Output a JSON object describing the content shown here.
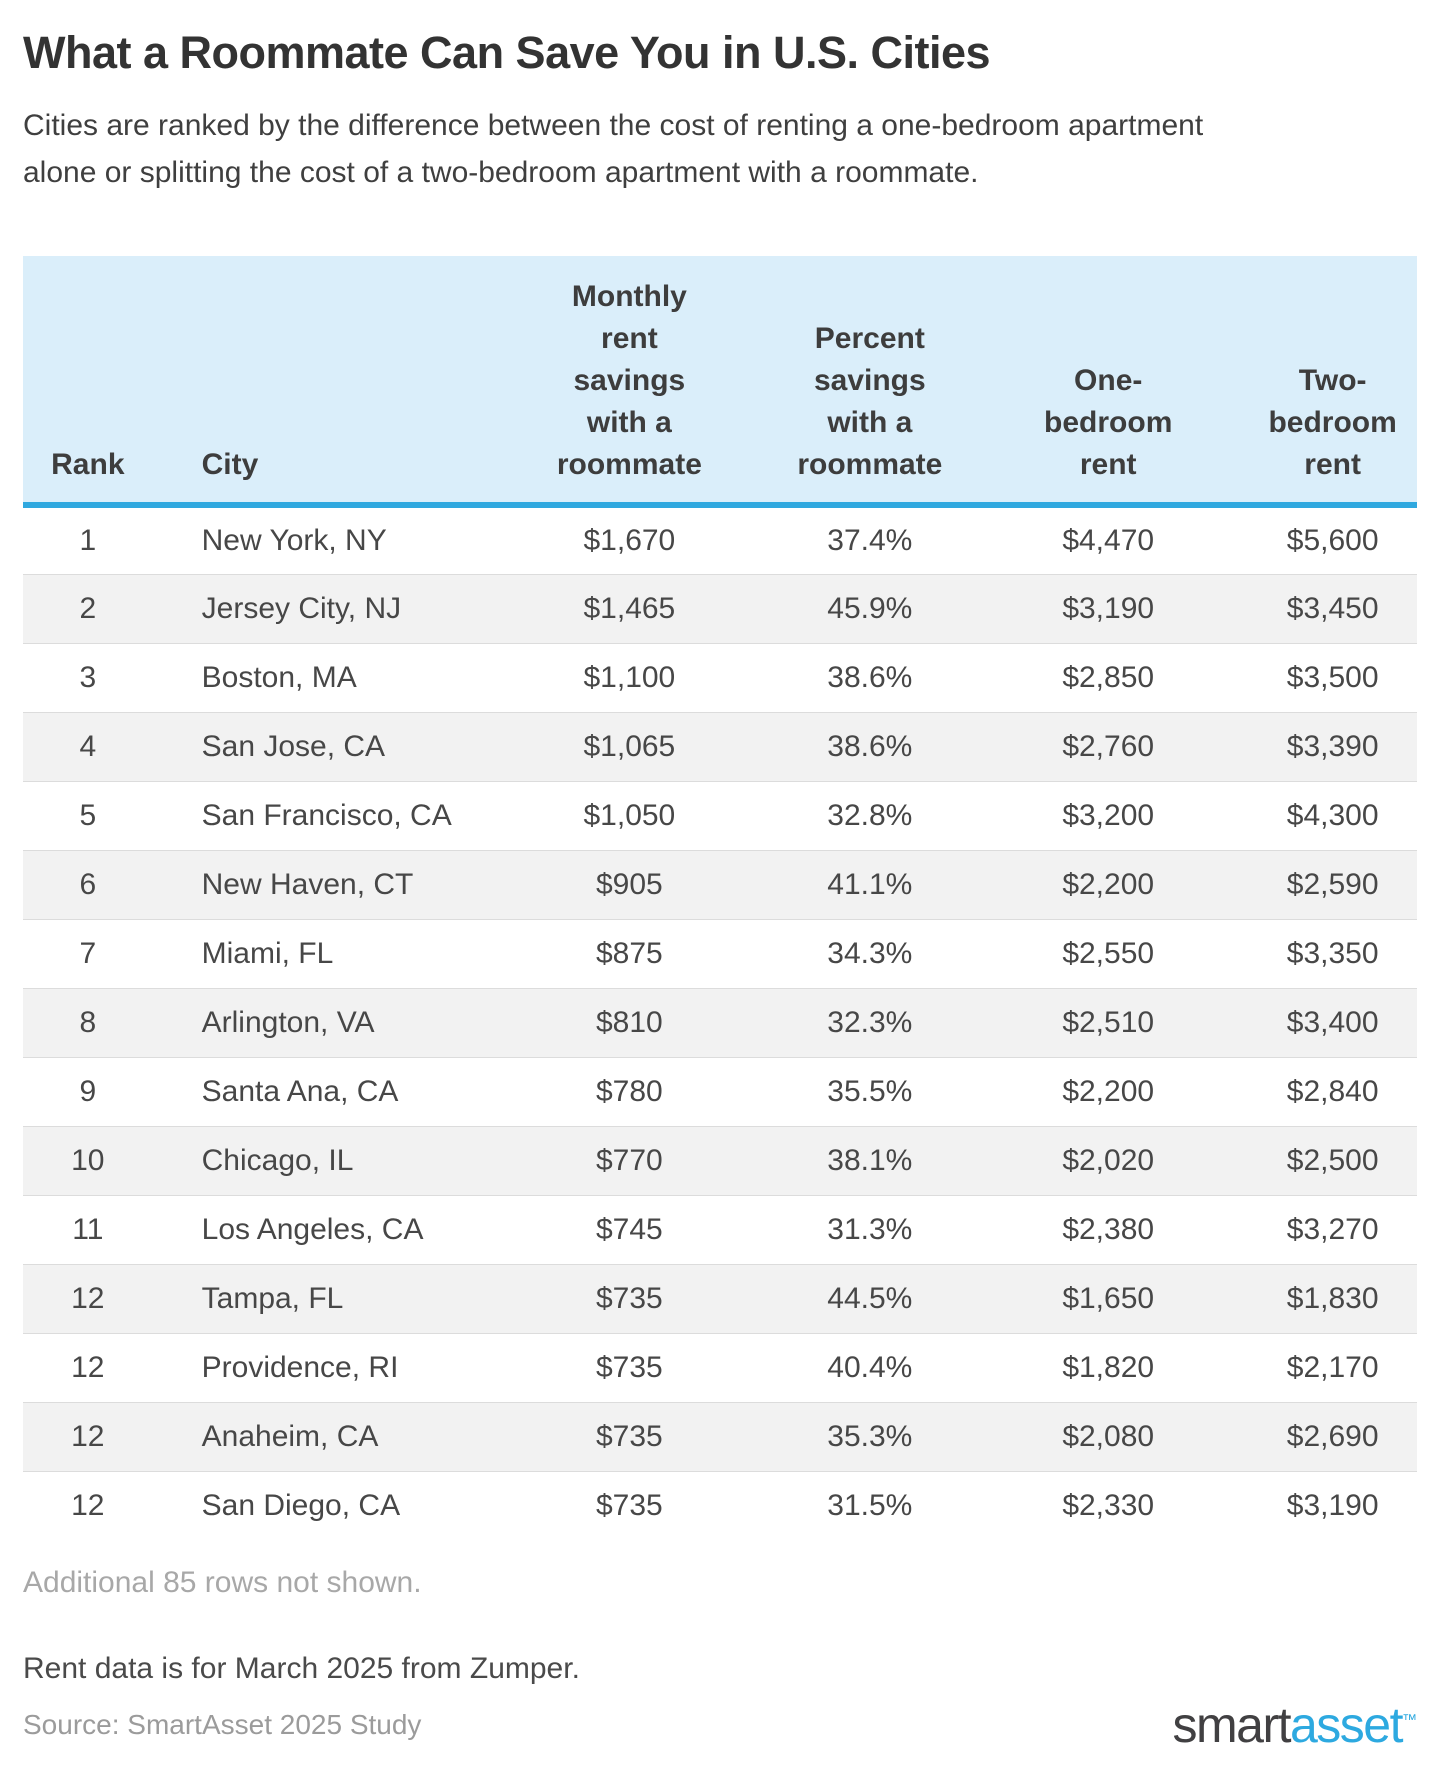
{
  "header": {
    "title": "What a Roommate Can Save You in U.S. Cities",
    "subtitle": "Cities are ranked by the difference between the cost of renting a one-bedroom apartment alone or splitting the cost of a two-bedroom apartment with a roommate."
  },
  "table": {
    "columns": [
      {
        "id": "rank",
        "label": "Rank",
        "align": "center"
      },
      {
        "id": "city",
        "label": "City",
        "align": "left"
      },
      {
        "id": "monthly-rent-savings",
        "label": "Monthly\nrent\nsavings\nwith a\nroommate",
        "align": "center"
      },
      {
        "id": "percent-savings",
        "label": "Percent\nsavings\nwith a\nroommate",
        "align": "center"
      },
      {
        "id": "one-bedroom-rent",
        "label": "One-\nbedroom\nrent",
        "align": "center"
      },
      {
        "id": "two-bedroom-rent",
        "label": "Two-\nbedroom\nrent",
        "align": "center"
      }
    ]
  },
  "chart_data": {
    "type": "table",
    "title": "What a Roommate Can Save You in U.S. Cities",
    "columns": [
      "Rank",
      "City",
      "Monthly rent savings with a roommate",
      "Percent savings with a roommate",
      "One-bedroom rent",
      "Two-bedroom rent"
    ],
    "rows": [
      [
        "1",
        "New York, NY",
        "$1,670",
        "37.4%",
        "$4,470",
        "$5,600"
      ],
      [
        "2",
        "Jersey City, NJ",
        "$1,465",
        "45.9%",
        "$3,190",
        "$3,450"
      ],
      [
        "3",
        "Boston, MA",
        "$1,100",
        "38.6%",
        "$2,850",
        "$3,500"
      ],
      [
        "4",
        "San Jose, CA",
        "$1,065",
        "38.6%",
        "$2,760",
        "$3,390"
      ],
      [
        "5",
        "San Francisco, CA",
        "$1,050",
        "32.8%",
        "$3,200",
        "$4,300"
      ],
      [
        "6",
        "New Haven, CT",
        "$905",
        "41.1%",
        "$2,200",
        "$2,590"
      ],
      [
        "7",
        "Miami, FL",
        "$875",
        "34.3%",
        "$2,550",
        "$3,350"
      ],
      [
        "8",
        "Arlington, VA",
        "$810",
        "32.3%",
        "$2,510",
        "$3,400"
      ],
      [
        "9",
        "Santa Ana, CA",
        "$780",
        "35.5%",
        "$2,200",
        "$2,840"
      ],
      [
        "10",
        "Chicago, IL",
        "$770",
        "38.1%",
        "$2,020",
        "$2,500"
      ],
      [
        "11",
        "Los Angeles, CA",
        "$745",
        "31.3%",
        "$2,380",
        "$3,270"
      ],
      [
        "12",
        "Tampa, FL",
        "$735",
        "44.5%",
        "$1,650",
        "$1,830"
      ],
      [
        "12",
        "Providence, RI",
        "$735",
        "40.4%",
        "$1,820",
        "$2,170"
      ],
      [
        "12",
        "Anaheim, CA",
        "$735",
        "35.3%",
        "$2,080",
        "$2,690"
      ],
      [
        "12",
        "San Diego, CA",
        "$735",
        "31.5%",
        "$2,330",
        "$3,190"
      ]
    ]
  },
  "footer": {
    "additional_note": "Additional 85 rows not shown.",
    "data_note": "Rent data is for March 2025 from Zumper.",
    "source": "Source: SmartAsset 2025 Study",
    "logo": {
      "part1": "smart",
      "part2": "asset",
      "trademark": "™"
    }
  },
  "colors": {
    "header_bg": "#daeefa",
    "accent_blue": "#2fa8df",
    "row_alt_bg": "#f2f2f2",
    "row_border": "#dcdcdc",
    "title_text": "#333333",
    "body_text": "#474747",
    "muted_text": "#a8a8a8",
    "source_text": "#9b9b9b",
    "logo_dark": "#414042",
    "logo_blue": "#2da9e0"
  }
}
